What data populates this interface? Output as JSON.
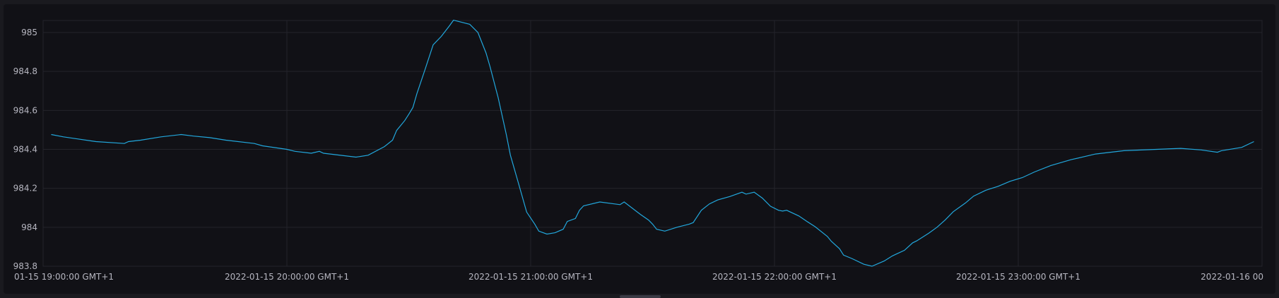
{
  "chart_data": {
    "type": "line",
    "title": "",
    "xlabel": "",
    "ylabel": "",
    "ylim": [
      983.8,
      985.06
    ],
    "grid": true,
    "line_color": "#22a7dc",
    "yticks": [
      "985",
      "984.8",
      "984.6",
      "984.4",
      "984.2",
      "984",
      "983.8"
    ],
    "ytick_values": [
      985,
      984.8,
      984.6,
      984.4,
      984.2,
      984,
      983.8
    ],
    "xticks": [
      "01-15 19:00:00 GMT+1",
      "2022-01-15 20:00:00 GMT+1",
      "2022-01-15 21:00:00 GMT+1",
      "2022-01-15 22:00:00 GMT+1",
      "2022-01-15 23:00:00 GMT+1",
      "2022-01-16 00"
    ],
    "xtick_values": [
      "2022-01-15 19:00",
      "2022-01-15 20:00",
      "2022-01-15 21:00",
      "2022-01-15 22:00",
      "2022-01-15 23:00",
      "2022-01-16 00:00"
    ],
    "series": [
      {
        "points": [
          [
            "2022-01-15 19:02",
            984.476
          ],
          [
            "2022-01-15 19:05",
            984.464
          ],
          [
            "2022-01-15 19:08",
            984.455
          ],
          [
            "2022-01-15 19:13",
            984.44
          ],
          [
            "2022-01-15 19:20",
            984.43
          ],
          [
            "2022-01-15 19:21",
            984.44
          ],
          [
            "2022-01-15 19:24",
            984.447
          ],
          [
            "2022-01-15 19:29",
            984.464
          ],
          [
            "2022-01-15 19:34",
            984.476
          ],
          [
            "2022-01-15 19:37",
            984.468
          ],
          [
            "2022-01-15 19:41",
            984.46
          ],
          [
            "2022-01-15 19:45",
            984.447
          ],
          [
            "2022-01-15 19:52",
            984.43
          ],
          [
            "2022-01-15 19:54",
            984.418
          ],
          [
            "2022-01-15 20:00",
            984.4
          ],
          [
            "2022-01-15 20:02",
            984.39
          ],
          [
            "2022-01-15 20:06",
            984.38
          ],
          [
            "2022-01-15 20:08",
            984.39
          ],
          [
            "2022-01-15 20:09",
            984.38
          ],
          [
            "2022-01-15 20:17",
            984.36
          ],
          [
            "2022-01-15 20:20",
            984.37
          ],
          [
            "2022-01-15 20:24",
            984.414
          ],
          [
            "2022-01-15 20:26",
            984.447
          ],
          [
            "2022-01-15 20:27",
            984.497
          ],
          [
            "2022-01-15 20:29",
            984.548
          ],
          [
            "2022-01-15 20:30",
            984.58
          ],
          [
            "2022-01-15 20:31",
            984.615
          ],
          [
            "2022-01-15 20:32",
            984.686
          ],
          [
            "2022-01-15 20:34",
            984.81
          ],
          [
            "2022-01-15 20:35",
            984.874
          ],
          [
            "2022-01-15 20:36",
            984.937
          ],
          [
            "2022-01-15 20:38",
            984.98
          ],
          [
            "2022-01-15 20:40",
            985.034
          ],
          [
            "2022-01-15 20:41",
            985.063
          ],
          [
            "2022-01-15 20:45",
            985.042
          ],
          [
            "2022-01-15 20:47",
            985.0
          ],
          [
            "2022-01-15 20:49",
            984.895
          ],
          [
            "2022-01-15 20:50",
            984.824
          ],
          [
            "2022-01-15 20:52",
            984.665
          ],
          [
            "2022-01-15 20:54",
            984.476
          ],
          [
            "2022-01-15 20:55",
            984.37
          ],
          [
            "2022-01-15 20:57",
            984.225
          ],
          [
            "2022-01-15 20:59",
            984.078
          ],
          [
            "2022-01-15 21:01",
            984.016
          ],
          [
            "2022-01-15 21:02",
            983.98
          ],
          [
            "2022-01-15 21:04",
            983.965
          ],
          [
            "2022-01-15 21:06",
            983.972
          ],
          [
            "2022-01-15 21:08",
            983.99
          ],
          [
            "2022-01-15 21:09",
            984.03
          ],
          [
            "2022-01-15 21:11",
            984.045
          ],
          [
            "2022-01-15 21:12",
            984.087
          ],
          [
            "2022-01-15 21:13",
            984.11
          ],
          [
            "2022-01-15 21:17",
            984.13
          ],
          [
            "2022-01-15 21:22",
            984.116
          ],
          [
            "2022-01-15 21:23",
            984.13
          ],
          [
            "2022-01-15 21:27",
            984.066
          ],
          [
            "2022-01-15 21:29",
            984.037
          ],
          [
            "2022-01-15 21:30",
            984.016
          ],
          [
            "2022-01-15 21:31",
            983.99
          ],
          [
            "2022-01-15 21:33",
            983.98
          ],
          [
            "2022-01-15 21:36",
            984.0
          ],
          [
            "2022-01-15 21:39",
            984.016
          ],
          [
            "2022-01-15 21:40",
            984.024
          ],
          [
            "2022-01-15 21:42",
            984.087
          ],
          [
            "2022-01-15 21:44",
            984.12
          ],
          [
            "2022-01-15 21:46",
            984.14
          ],
          [
            "2022-01-15 21:49",
            984.158
          ],
          [
            "2022-01-15 21:52",
            984.18
          ],
          [
            "2022-01-15 21:53",
            984.17
          ],
          [
            "2022-01-15 21:55",
            984.18
          ],
          [
            "2022-01-15 21:57",
            984.15
          ],
          [
            "2022-01-15 21:59",
            984.108
          ],
          [
            "2022-01-15 22:01",
            984.087
          ],
          [
            "2022-01-15 22:02",
            984.083
          ],
          [
            "2022-01-15 22:03",
            984.087
          ],
          [
            "2022-01-15 22:06",
            984.058
          ],
          [
            "2022-01-15 22:08",
            984.03
          ],
          [
            "2022-01-15 22:10",
            984.003
          ],
          [
            "2022-01-15 22:13",
            983.953
          ],
          [
            "2022-01-15 22:14",
            983.928
          ],
          [
            "2022-01-15 22:16",
            983.89
          ],
          [
            "2022-01-15 22:17",
            983.857
          ],
          [
            "2022-01-15 22:19",
            983.84
          ],
          [
            "2022-01-15 22:22",
            983.81
          ],
          [
            "2022-01-15 22:24",
            983.8
          ],
          [
            "2022-01-15 22:27",
            983.827
          ],
          [
            "2022-01-15 22:29",
            983.853
          ],
          [
            "2022-01-15 22:32",
            983.882
          ],
          [
            "2022-01-15 22:34",
            983.92
          ],
          [
            "2022-01-15 22:35",
            983.93
          ],
          [
            "2022-01-15 22:38",
            983.97
          ],
          [
            "2022-01-15 22:40",
            984.0
          ],
          [
            "2022-01-15 22:42",
            984.037
          ],
          [
            "2022-01-15 22:44",
            984.08
          ],
          [
            "2022-01-15 22:47",
            984.125
          ],
          [
            "2022-01-15 22:49",
            984.16
          ],
          [
            "2022-01-15 22:52",
            984.19
          ],
          [
            "2022-01-15 22:55",
            984.21
          ],
          [
            "2022-01-15 22:58",
            984.236
          ],
          [
            "2022-01-15 23:01",
            984.255
          ],
          [
            "2022-01-15 23:04",
            984.284
          ],
          [
            "2022-01-15 23:08",
            984.317
          ],
          [
            "2022-01-15 23:13",
            984.347
          ],
          [
            "2022-01-15 23:19",
            984.376
          ],
          [
            "2022-01-15 23:26",
            984.393
          ],
          [
            "2022-01-15 23:34",
            984.4
          ],
          [
            "2022-01-15 23:40",
            984.405
          ],
          [
            "2022-01-15 23:45",
            984.397
          ],
          [
            "2022-01-15 23:49",
            984.385
          ],
          [
            "2022-01-15 23:50",
            984.393
          ],
          [
            "2022-01-15 23:55",
            984.41
          ],
          [
            "2022-01-15 23:58",
            984.44
          ]
        ]
      }
    ]
  }
}
